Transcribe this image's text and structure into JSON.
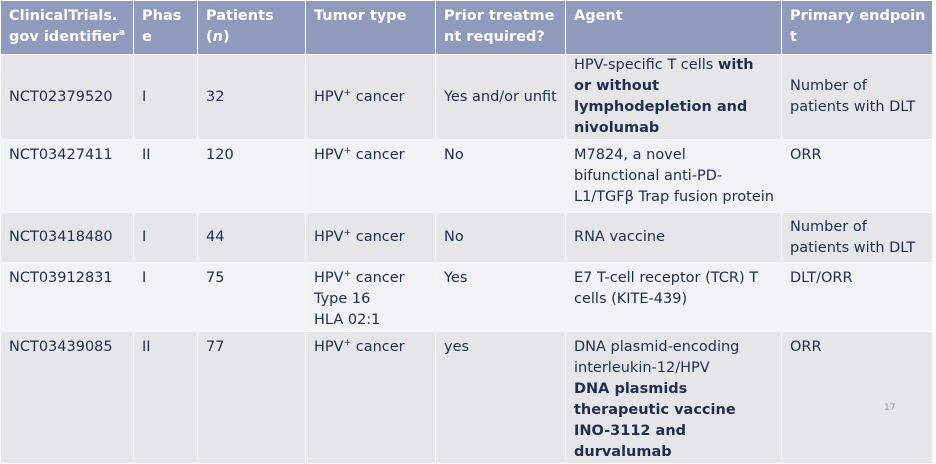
{
  "table": {
    "header": [
      [
        [
          {
            "text": "ClinicalTrials.gov identifier"
          },
          {
            "text": "a",
            "style": "sup"
          }
        ]
      ],
      [
        [
          {
            "text": "Phase"
          }
        ]
      ],
      [
        [
          {
            "text": "Patients ("
          },
          {
            "text": "n",
            "style": "italic"
          },
          {
            "text": ")"
          }
        ]
      ],
      [
        [
          {
            "text": "Tumor type"
          }
        ]
      ],
      [
        [
          {
            "text": "Prior treatment required?"
          }
        ]
      ],
      [
        [
          {
            "text": "Agent"
          }
        ]
      ],
      [
        [
          {
            "text": "Primary endpoint"
          }
        ]
      ]
    ],
    "rows": [
      [
        [
          [
            {
              "text": "NCT02379520"
            }
          ]
        ],
        [
          [
            {
              "text": "I"
            }
          ]
        ],
        [
          [
            {
              "text": "32"
            }
          ]
        ],
        [
          [
            {
              "text": "HPV"
            },
            {
              "text": "+",
              "style": "sup"
            },
            {
              "text": " cancer"
            }
          ]
        ],
        [
          [
            {
              "text": "Yes and/or unfit"
            }
          ]
        ],
        [
          [
            {
              "text": "HPV-specific T cells "
            },
            {
              "text": "with or without lymphodepletion and nivolumab",
              "style": "bold"
            }
          ]
        ],
        [
          [
            {
              "text": "Number of patients with DLT"
            }
          ]
        ]
      ],
      [
        [
          [
            {
              "text": "NCT03427411"
            }
          ]
        ],
        [
          [
            {
              "text": "II"
            }
          ]
        ],
        [
          [
            {
              "text": "120"
            }
          ]
        ],
        [
          [
            {
              "text": "HPV"
            },
            {
              "text": "+",
              "style": "sup"
            },
            {
              "text": " cancer"
            }
          ]
        ],
        [
          [
            {
              "text": "No"
            }
          ]
        ],
        [
          [
            {
              "text": "M7824, a novel bifunctional anti-PD-L1/TGFβ Trap fusion protein"
            }
          ]
        ],
        [
          [
            {
              "text": "ORR"
            }
          ]
        ]
      ],
      [
        [
          [
            {
              "text": "NCT03418480"
            }
          ]
        ],
        [
          [
            {
              "text": "I"
            }
          ]
        ],
        [
          [
            {
              "text": "44"
            }
          ]
        ],
        [
          [
            {
              "text": "HPV"
            },
            {
              "text": "+",
              "style": "sup"
            },
            {
              "text": " cancer"
            }
          ]
        ],
        [
          [
            {
              "text": "No"
            }
          ]
        ],
        [
          [
            {
              "text": "RNA vaccine"
            }
          ]
        ],
        [
          [
            {
              "text": "Number of patients with DLT"
            }
          ]
        ]
      ],
      [
        [
          [
            {
              "text": "NCT03912831"
            }
          ]
        ],
        [
          [
            {
              "text": "I"
            }
          ]
        ],
        [
          [
            {
              "text": "75"
            }
          ]
        ],
        [
          [
            {
              "text": "HPV"
            },
            {
              "text": "+",
              "style": "sup"
            },
            {
              "text": " cancer"
            }
          ],
          [
            {
              "text": "Type 16"
            }
          ],
          [
            {
              "text": "HLA 02:1"
            }
          ]
        ],
        [
          [
            {
              "text": "Yes"
            }
          ]
        ],
        [
          [
            {
              "text": "E7 T-cell receptor (TCR) T cells (KITE-439)"
            }
          ]
        ],
        [
          [
            {
              "text": "DLT/ORR"
            }
          ]
        ]
      ],
      [
        [
          [
            {
              "text": "NCT03439085"
            }
          ]
        ],
        [
          [
            {
              "text": "II"
            }
          ]
        ],
        [
          [
            {
              "text": "77"
            }
          ]
        ],
        [
          [
            {
              "text": "HPV"
            },
            {
              "text": "+",
              "style": "sup"
            },
            {
              "text": " cancer"
            }
          ]
        ],
        [
          [
            {
              "text": "yes"
            }
          ]
        ],
        [
          [
            {
              "text": "DNA plasmid-encoding interleukin-12/HPV"
            }
          ],
          [
            {
              "text": "DNA plasmids therapeutic vaccine INO-3112 and durvalumab",
              "style": "bold"
            }
          ]
        ],
        [
          [
            {
              "text": "ORR"
            }
          ]
        ]
      ]
    ]
  },
  "page_number": "17"
}
